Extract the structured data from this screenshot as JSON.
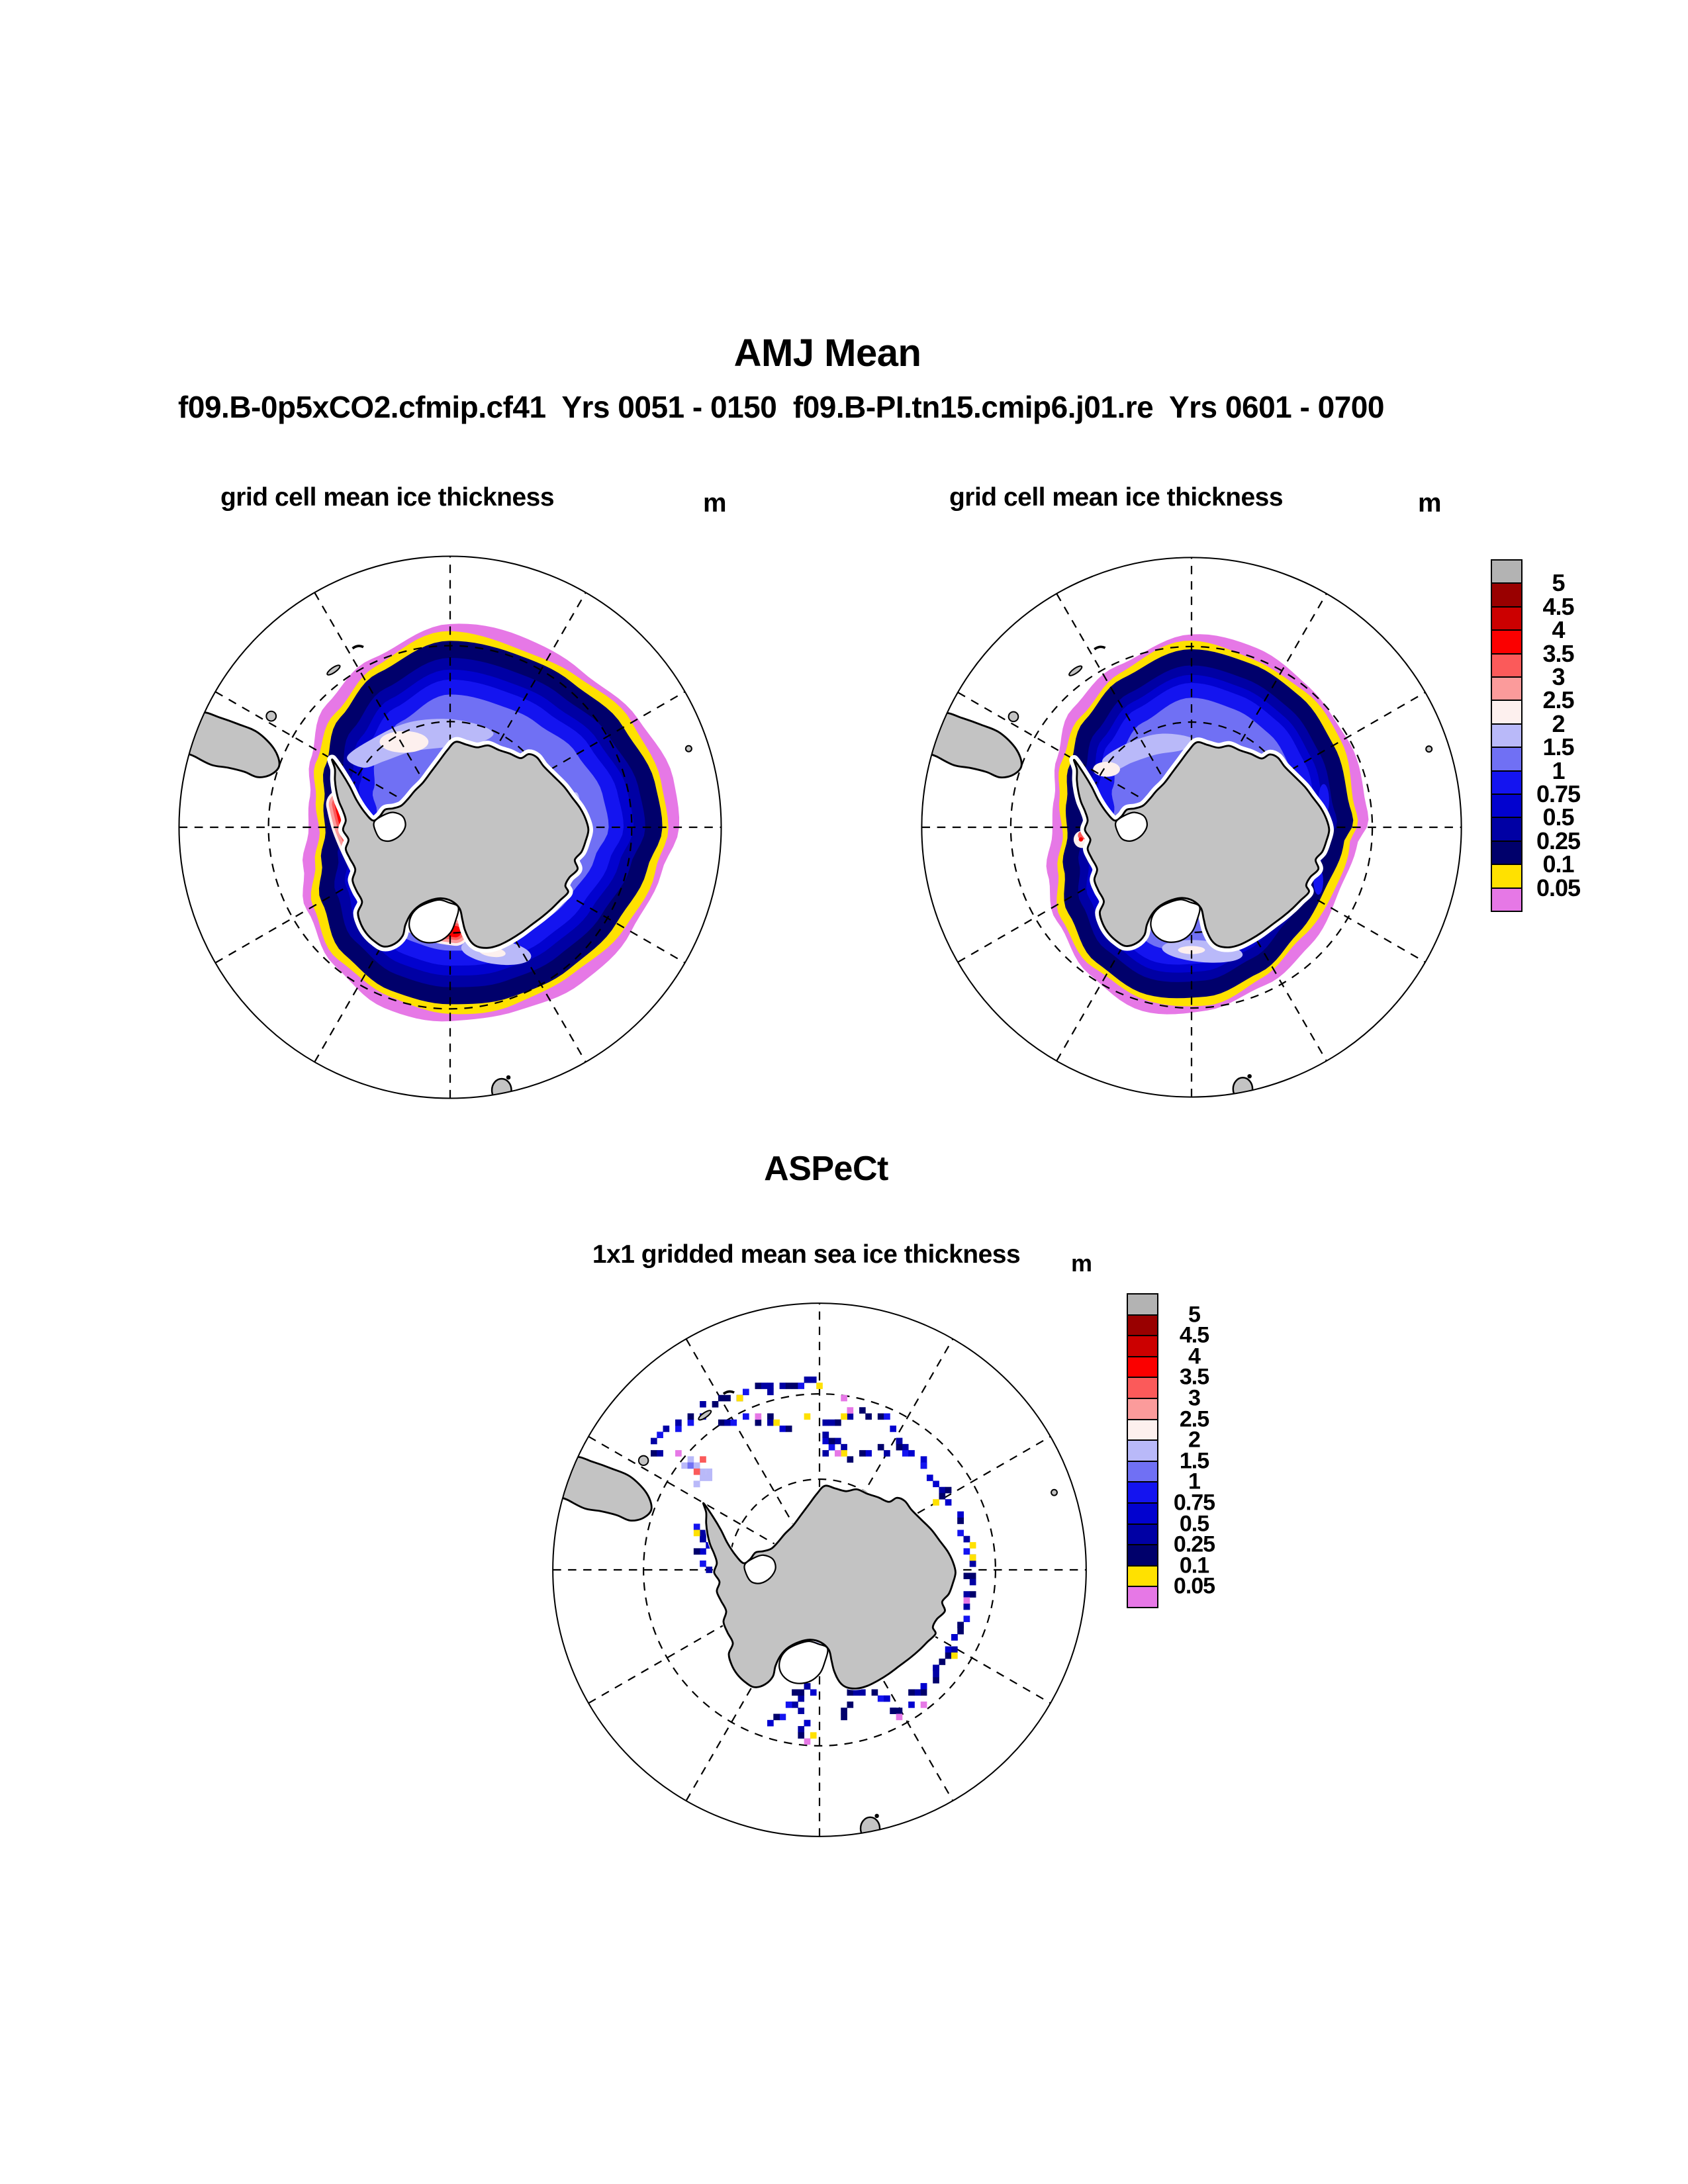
{
  "header": {
    "title": "AMJ Mean",
    "subtitle": "f09.B-0p5xCO2.cfmip.cf41  Yrs 0051 - 0150  f09.B-PI.tn15.cmip6.j01.re  Yrs 0601 - 0700"
  },
  "panels": {
    "left": {
      "title": "grid cell mean ice thickness",
      "units": "m"
    },
    "right": {
      "title": "grid cell mean ice thickness",
      "units": "m"
    },
    "bottom": {
      "section": "ASPeCt",
      "title": "1x1 gridded mean sea ice thickness",
      "units": "m"
    }
  },
  "colorbar": {
    "labels": [
      "5",
      "4.5",
      "4",
      "3.5",
      "3",
      "2.5",
      "2",
      "1.5",
      "1",
      "0.75",
      "0.5",
      "0.25",
      "0.1",
      "0.05"
    ],
    "colors": [
      "#b3b3b3",
      "#990000",
      "#cc0000",
      "#fb0000",
      "#fb5a5a",
      "#fb9b9b",
      "#fdf0ee",
      "#b9b9f9",
      "#7070f4",
      "#1414f0",
      "#0202cf",
      "#0000a4",
      "#00006b",
      "#ffe100",
      "#e678e6"
    ]
  },
  "map_style": {
    "land": "#c3c3c3",
    "coast": "#000000",
    "ocean": "#ffffff",
    "ice_shelf": "#ffffff",
    "graticule": "#000000"
  },
  "chart_data": {
    "type": "heatmap",
    "subtype": "south polar stereographic filled-contour maps of Antarctic sea ice thickness",
    "figure_title": "AMJ Mean",
    "runs_line": "f09.B-0p5xCO2.cfmip.cf41  Yrs 0051 - 0150  f09.B-PI.tn15.cmip6.j01.re  Yrs 0601 - 0700",
    "units": "m",
    "levels_m": [
      0.05,
      0.1,
      0.25,
      0.5,
      0.75,
      1,
      1.5,
      2,
      2.5,
      3,
      3.5,
      4,
      4.5,
      5
    ],
    "palette_low_to_high": [
      "#e678e6",
      "#ffe100",
      "#00006b",
      "#0000a4",
      "#0202cf",
      "#1414f0",
      "#7070f4",
      "#b9b9f9",
      "#fdf0ee",
      "#fb9b9b",
      "#fb5a5a",
      "#fb0000",
      "#cc0000",
      "#990000",
      "#b3b3b3"
    ],
    "legend_position": "right of each map, vertical discrete colorbar labeled in m",
    "grid": "dashed graticule: meridians every 30 deg and two dashed latitude circles; solid circular map boundary",
    "panels": [
      {
        "position": "top-left",
        "case": "f09.B-0p5xCO2.cfmip.cf41",
        "years": "0051 - 0150",
        "title": "grid cell mean ice thickness",
        "description": "Circumpolar ice pack: magenta (<0.05 m) and yellow (0.05-0.1 m) fringe at the edge, broad 0.1-1 m dark-to-bright blue bands, 1-2 m light blue/lavender in the Weddell sector, and a 2.5-4.5 m red crescent along the west Antarctic Peninsula and Bellingshausen-Amundsen coast. Ice edge reaches farthest north east of the peninsula (right side of map)."
      },
      {
        "position": "top-right",
        "case": "f09.B-PI.tn15.cmip6.j01.re",
        "years": "0601 - 0700",
        "title": "grid cell mean ice thickness",
        "description": "Similar circumpolar pack with slightly smaller extent and thinner ice; 1.5-2 m lavender only in a smaller Weddell patch; just a few small 2.5-4 m red spots near the Antarctic Peninsula; same magenta/yellow edge fringe."
      },
      {
        "position": "bottom-center",
        "case": "ASPeCt ship observations",
        "years": "",
        "title": "1x1 gridded mean sea ice thickness",
        "description": "Sparse 1-degree cells along ship tracks: mostly 0.1-1 m (dark blue) cells along the East Antarctic coast, in an arc across the outer Weddell Sea, a loop near 0-30E, and branches in the Ross sector; scattered 0.05-0.1 m (yellow) and <0.05 m (magenta) cells; a few 1-2 m (light blue) cells west of the Antarctic Peninsula and 2.5-3.5 m (red) cells in the Amundsen sector."
      }
    ]
  }
}
